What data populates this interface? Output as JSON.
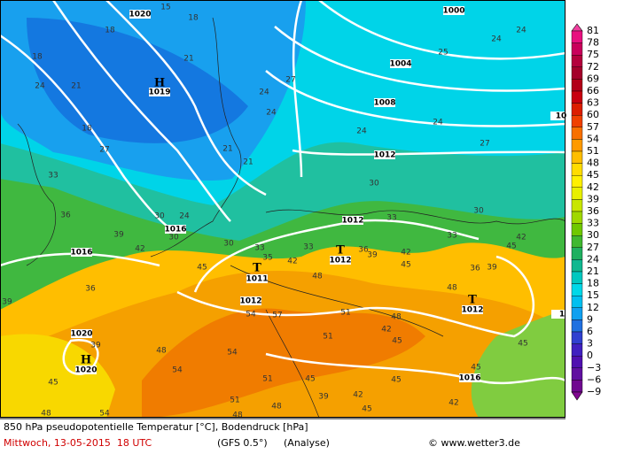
{
  "map": {
    "pressure_labels": [
      "1020",
      "1000",
      "1004",
      "1008",
      "1012",
      "1012",
      "1016",
      "1016",
      "1011",
      "1012",
      "1012",
      "1012",
      "1020",
      "1020",
      "1016",
      "1019",
      "10",
      "1"
    ],
    "pressure_centers": [
      "H",
      "H",
      "T",
      "T",
      "T"
    ],
    "contour_labels": [
      "15",
      "18",
      "18",
      "18",
      "21",
      "24",
      "21",
      "18",
      "27",
      "21",
      "24",
      "24",
      "27",
      "24",
      "24",
      "27",
      "21",
      "33",
      "36",
      "30",
      "24",
      "30",
      "39",
      "42",
      "30",
      "33",
      "35",
      "42",
      "33",
      "48",
      "36",
      "39",
      "42",
      "45",
      "33",
      "36",
      "39",
      "45",
      "42",
      "30",
      "33",
      "30",
      "24",
      "24",
      "25",
      "45",
      "39",
      "36",
      "54",
      "57",
      "51",
      "48",
      "51",
      "54",
      "48",
      "54",
      "45",
      "39",
      "51",
      "45",
      "39",
      "48",
      "45",
      "42",
      "45",
      "45",
      "42",
      "48",
      "54",
      "51",
      "48",
      "42",
      "45",
      "48",
      "45"
    ]
  },
  "colorbar": {
    "labels": [
      "81",
      "78",
      "75",
      "72",
      "69",
      "66",
      "63",
      "60",
      "57",
      "54",
      "51",
      "48",
      "45",
      "42",
      "39",
      "36",
      "33",
      "30",
      "27",
      "24",
      "21",
      "18",
      "15",
      "12",
      "9",
      "6",
      "3",
      "0",
      "−3",
      "−6",
      "−9"
    ]
  },
  "footer": {
    "title": "850 hPa pseudopotentielle Temperatur [°C], Bodendruck [hPa]",
    "date": "Mittwoch, 13-05-2015  18 UTC",
    "model": "(GFS 0.5°)",
    "run": "(Analyse)",
    "credit": "© www.wetter3.de"
  }
}
